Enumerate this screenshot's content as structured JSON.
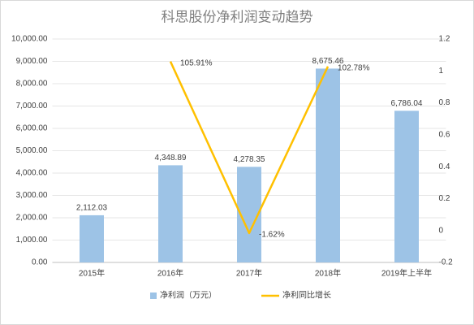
{
  "chart_data": {
    "type": "bar_line",
    "title": "科思股份净利润变动趋势",
    "categories": [
      "2015年",
      "2016年",
      "2017年",
      "2018年",
      "2019年上半年"
    ],
    "series": [
      {
        "name": "净利润（万元）",
        "type": "bar",
        "color": "#9dc3e6",
        "values": [
          2112.03,
          4348.89,
          4278.35,
          8675.46,
          6786.04
        ],
        "value_labels": [
          "2,112.03",
          "4,348.89",
          "4,278.35",
          "8,675.46",
          "6,786.04"
        ]
      },
      {
        "name": "净利同比增长",
        "type": "line",
        "axis": "y2",
        "color": "#ffc000",
        "values": [
          null,
          1.0591,
          -0.0162,
          1.0278,
          null
        ],
        "value_labels": [
          null,
          "105.91%",
          "-1.62%",
          "102.78%",
          null
        ]
      }
    ],
    "ylim": [
      0,
      10000
    ],
    "yticks": [
      {
        "value": 0,
        "label": "0.00"
      },
      {
        "value": 1000,
        "label": "1,000.00"
      },
      {
        "value": 2000,
        "label": "2,000.00"
      },
      {
        "value": 3000,
        "label": "3,000.00"
      },
      {
        "value": 4000,
        "label": "4,000.00"
      },
      {
        "value": 5000,
        "label": "5,000.00"
      },
      {
        "value": 6000,
        "label": "6,000.00"
      },
      {
        "value": 7000,
        "label": "7,000.00"
      },
      {
        "value": 8000,
        "label": "8,000.00"
      },
      {
        "value": 9000,
        "label": "9,000.00"
      },
      {
        "value": 10000,
        "label": "10,000.00"
      }
    ],
    "y2lim": [
      -0.2,
      1.2
    ],
    "y2ticks": [
      -0.2,
      0,
      0.2,
      0.4,
      0.6,
      0.8,
      1,
      1.2
    ],
    "grid": true,
    "legend": "bottom"
  }
}
